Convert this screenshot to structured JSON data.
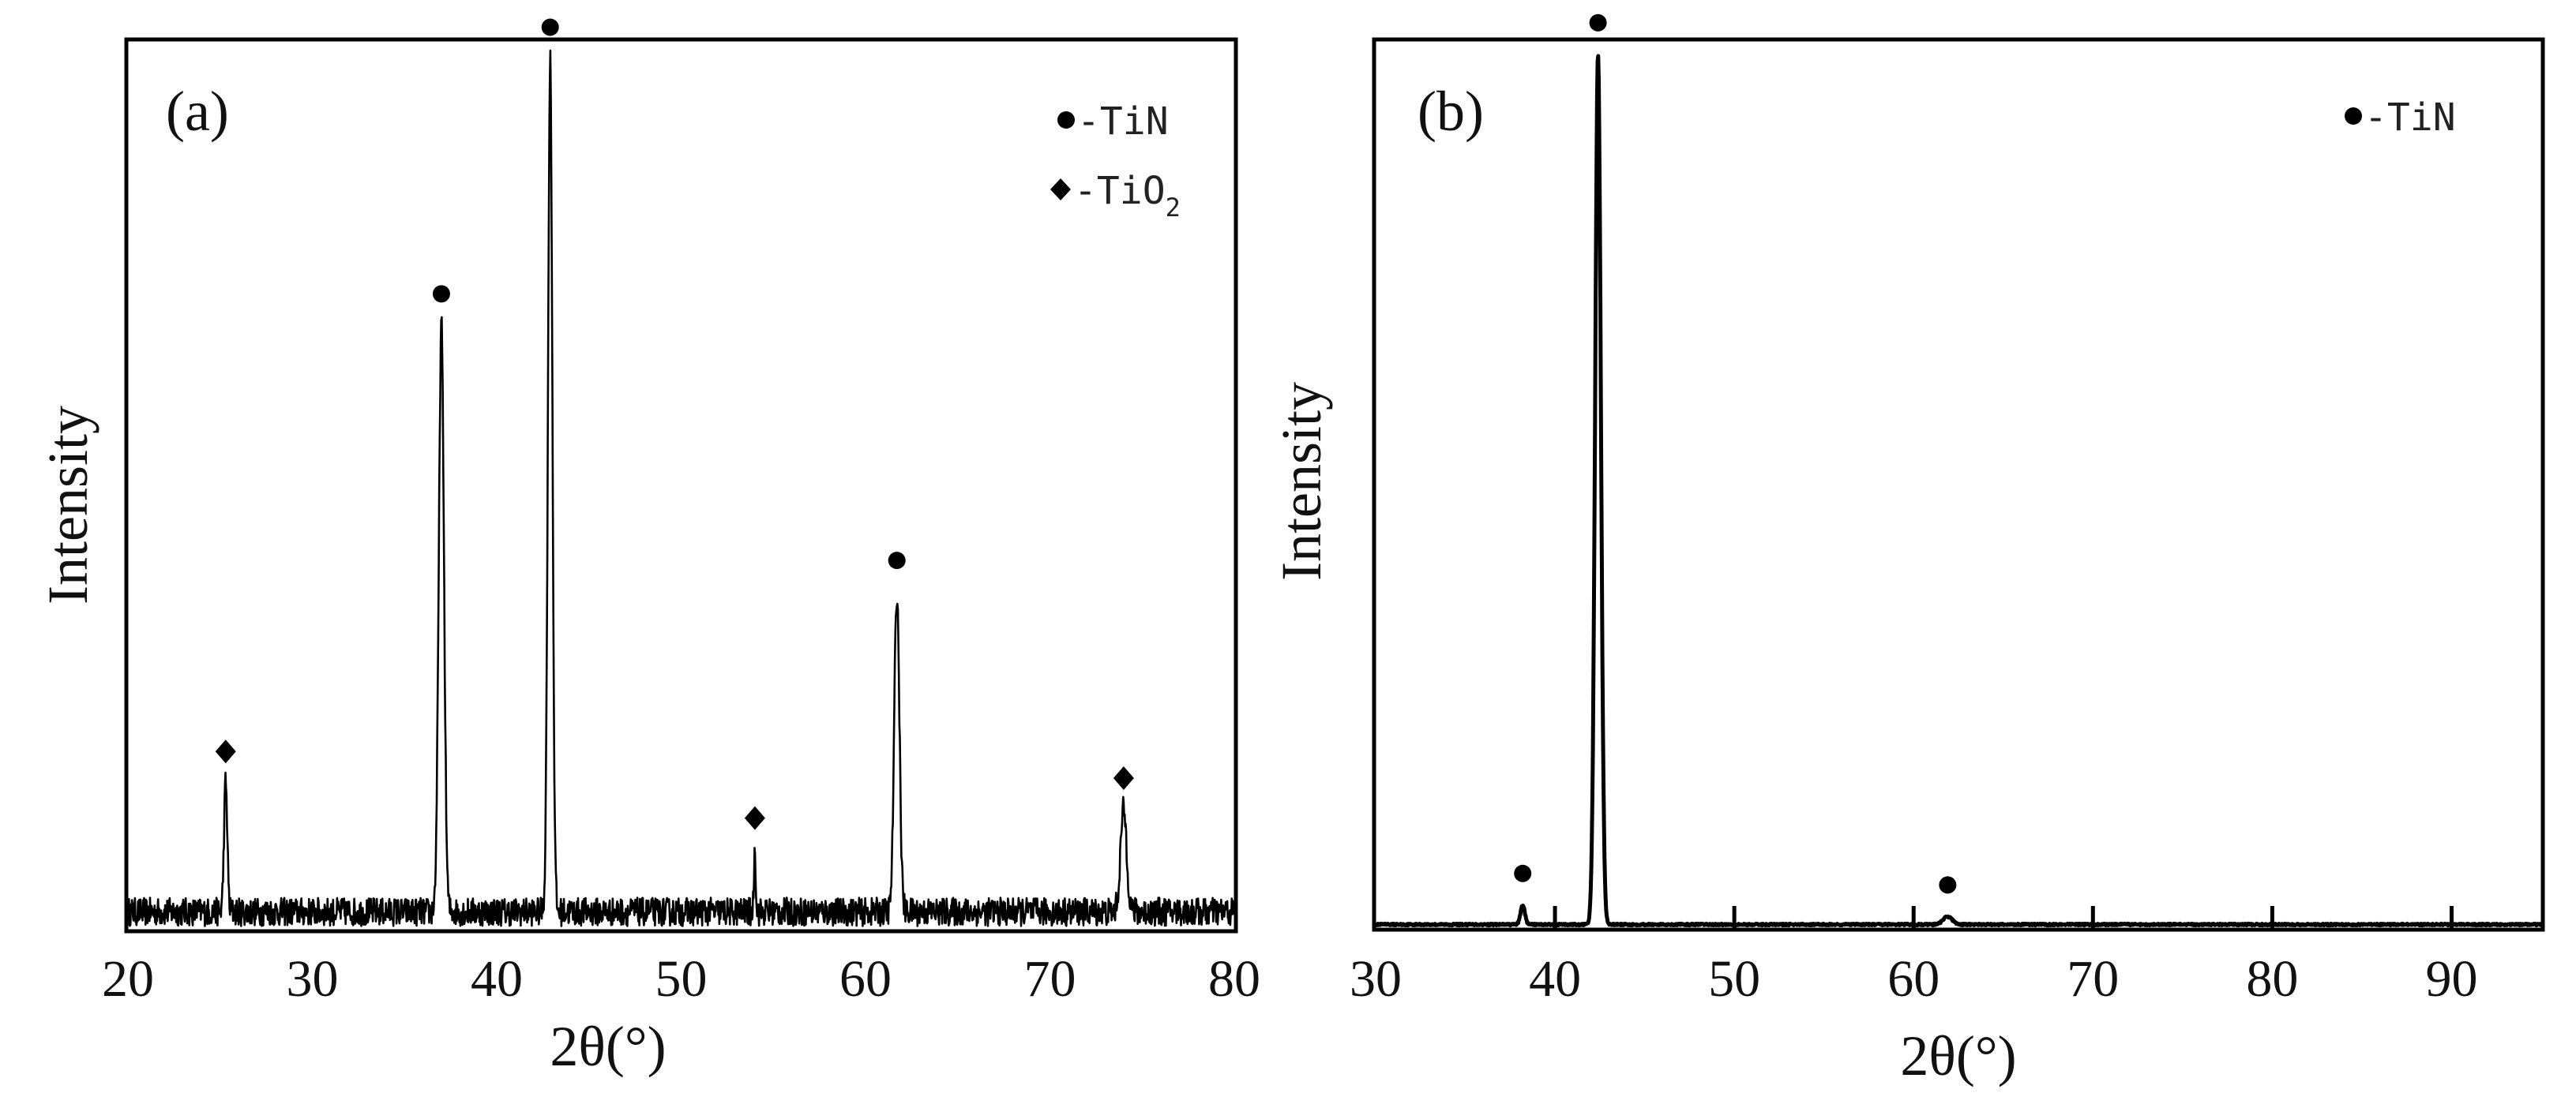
{
  "chart_data": [
    {
      "type": "line",
      "panel_label": "(a)",
      "xlabel": "2θ(°)",
      "ylabel": "Intensity",
      "xlim": [
        20,
        80
      ],
      "ylim": [
        0,
        100
      ],
      "xticks": [
        20,
        30,
        40,
        50,
        60,
        70,
        80
      ],
      "grid": false,
      "legend_position": "top-right",
      "legend": [
        {
          "marker": "circle",
          "text": "-TiN"
        },
        {
          "marker": "diamond",
          "text": "-TiO",
          "subscript": "2"
        }
      ],
      "baseline": 2,
      "noise": 1.6,
      "peaks": [
        {
          "x": 25.3,
          "y": 16.5,
          "width": 0.09,
          "phase": "TiO2",
          "marker": "diamond"
        },
        {
          "x": 37.0,
          "y": 68.0,
          "width": 0.14,
          "phase": "TiN",
          "marker": "circle"
        },
        {
          "x": 42.9,
          "y": 98.0,
          "width": 0.12,
          "phase": "TiN",
          "marker": "circle"
        },
        {
          "x": 54.0,
          "y": 9.0,
          "width": 0.05,
          "phase": "TiO2",
          "marker": "diamond"
        },
        {
          "x": 61.7,
          "y": 38.0,
          "width": 0.14,
          "phase": "TiN",
          "marker": "circle"
        },
        {
          "x": 74.0,
          "y": 13.5,
          "width": 0.17,
          "phase": "TiO2",
          "marker": "diamond"
        }
      ]
    },
    {
      "type": "line",
      "panel_label": "(b)",
      "xlabel": "2θ(°)",
      "ylabel": "Intensity",
      "xlim": [
        30,
        95
      ],
      "ylim": [
        0,
        100
      ],
      "xticks": [
        30,
        40,
        50,
        60,
        70,
        80,
        90
      ],
      "grid": false,
      "legend_position": "top-right",
      "legend": [
        {
          "marker": "circle",
          "text": "-TiN"
        }
      ],
      "baseline": 0.4,
      "noise": 0.1,
      "peaks": [
        {
          "x": 38.2,
          "y": 2.6,
          "width": 0.12,
          "phase": "TiN",
          "marker": "circle"
        },
        {
          "x": 42.4,
          "y": 98.5,
          "width": 0.16,
          "phase": "TiN",
          "marker": "circle"
        },
        {
          "x": 61.9,
          "y": 1.3,
          "width": 0.25,
          "phase": "TiN",
          "marker": "circle"
        }
      ]
    }
  ]
}
